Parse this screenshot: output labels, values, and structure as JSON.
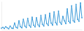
{
  "chart_data": {
    "type": "line",
    "color": "#3a9ad9",
    "marker": "circle",
    "tick_labels": false,
    "x": [
      0,
      1,
      2,
      3,
      4,
      5,
      6,
      7,
      8,
      9,
      10,
      11,
      12,
      13,
      14,
      15,
      16,
      17,
      18,
      19,
      20,
      21,
      22,
      23,
      24,
      25,
      26,
      27,
      28,
      29,
      30,
      31,
      32,
      33,
      34,
      35,
      36,
      37,
      38,
      39,
      40,
      41,
      42,
      43,
      44,
      45,
      46,
      47,
      48,
      49,
      50,
      51,
      52,
      53,
      54,
      55
    ],
    "values": [
      5,
      8,
      4,
      10,
      6,
      3,
      12,
      5,
      4,
      22,
      8,
      5,
      30,
      10,
      6,
      35,
      12,
      7,
      38,
      14,
      8,
      42,
      15,
      9,
      40,
      16,
      10,
      48,
      18,
      12,
      50,
      20,
      14,
      55,
      22,
      15,
      60,
      24,
      16,
      62,
      25,
      18,
      45,
      30,
      20,
      70,
      28,
      22,
      80,
      30,
      25,
      85,
      35,
      28,
      90,
      40
    ],
    "xlim": [
      0,
      55
    ],
    "ylim": [
      0,
      95
    ]
  }
}
